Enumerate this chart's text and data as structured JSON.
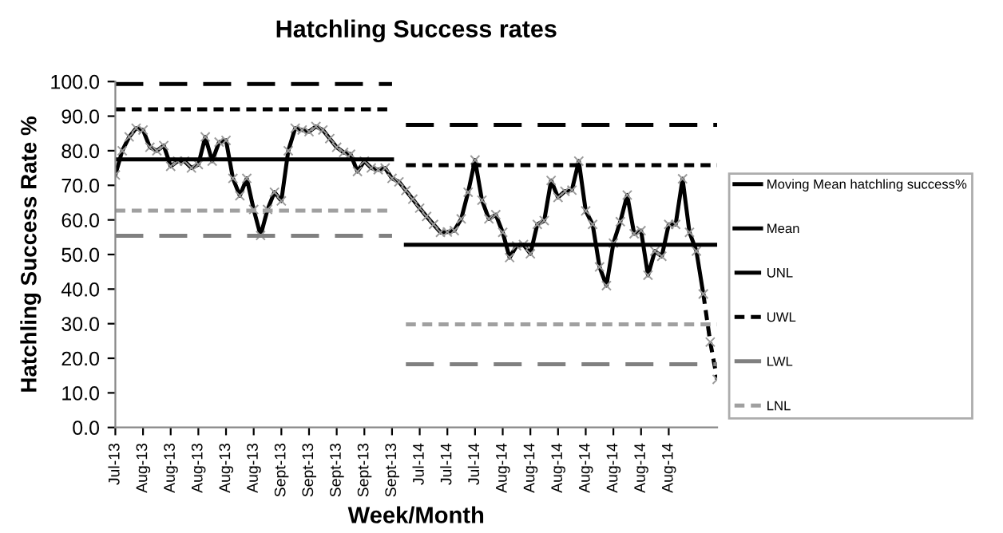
{
  "chart_data": {
    "type": "line",
    "title": "Hatchling Success rates",
    "xlabel": "Week/Month",
    "ylabel": "Hatchling Success Rate %",
    "categories": [
      "Jul-13",
      null,
      null,
      null,
      "Aug-13",
      null,
      null,
      null,
      "Aug-13",
      null,
      null,
      null,
      "Aug-13",
      null,
      null,
      null,
      "Aug-13",
      null,
      null,
      null,
      "Aug-13",
      null,
      null,
      null,
      "Sept-13",
      null,
      null,
      null,
      "Sept-13",
      null,
      null,
      null,
      "Sept-13",
      null,
      null,
      null,
      "Sept-13",
      null,
      null,
      null,
      "Sept-13",
      null,
      null,
      null,
      "Jul-14",
      null,
      null,
      null,
      "Jul-14",
      null,
      null,
      null,
      "Jul-14",
      null,
      null,
      null,
      "Aug-14",
      null,
      null,
      null,
      "Aug-14",
      null,
      null,
      null,
      "Aug-14",
      null,
      null,
      null,
      "Aug-14",
      null,
      null,
      null,
      "Aug-14",
      null,
      null,
      null,
      "Aug-14",
      null,
      null,
      null,
      "Aug-14",
      null,
      null,
      null,
      null,
      null,
      null,
      null
    ],
    "series": [
      {
        "name": "Moving Mean hatchling success%",
        "color": "#000000",
        "marker": "cross",
        "line_style": "solid",
        "values": [
          73,
          80,
          84,
          86.5,
          86,
          81,
          80,
          81.5,
          75.5,
          77,
          77,
          75,
          76,
          84,
          77,
          82.5,
          83,
          72,
          67,
          72,
          63,
          55.5,
          63,
          68,
          65.5,
          80,
          86.5,
          86,
          85.5,
          87,
          86,
          83.5,
          81,
          79.5,
          79,
          74,
          77,
          75,
          74.5,
          75,
          72,
          71,
          68.5,
          66,
          63.4,
          61,
          58.7,
          56.4,
          56.5,
          56.9,
          60.3,
          68,
          77.3,
          65.7,
          60.3,
          61.5,
          56.4,
          49.1,
          52.5,
          52.9,
          50.2,
          58.7,
          59.8,
          71.4,
          66.5,
          68.3,
          68.6,
          77,
          62.6,
          58.7,
          46.4,
          41,
          53.3,
          59.5,
          67.2,
          56,
          56.9,
          44,
          51,
          49.5,
          58.7,
          58.7,
          71.9,
          56.4,
          51,
          38.6,
          null,
          null
        ]
      },
      {
        "color": "#000000",
        "marker": "cross",
        "line_style": "dotted",
        "values": [
          null,
          null,
          null,
          null,
          null,
          null,
          null,
          null,
          null,
          null,
          null,
          null,
          null,
          null,
          null,
          null,
          null,
          null,
          null,
          null,
          null,
          null,
          null,
          null,
          null,
          null,
          null,
          null,
          null,
          null,
          null,
          null,
          null,
          null,
          null,
          null,
          null,
          null,
          null,
          null,
          null,
          null,
          null,
          null,
          null,
          null,
          null,
          null,
          null,
          null,
          null,
          null,
          null,
          null,
          null,
          null,
          null,
          null,
          null,
          null,
          null,
          null,
          null,
          null,
          null,
          null,
          null,
          null,
          null,
          null,
          null,
          null,
          null,
          null,
          null,
          null,
          null,
          null,
          null,
          null,
          null,
          null,
          null,
          null,
          null,
          38.6,
          24.7,
          13.9
        ]
      },
      {
        "name": "Mean",
        "color": "#000000",
        "line_style": "solid",
        "values": [
          77.5,
          77.5,
          77.5,
          77.5,
          77.5,
          77.5,
          77.5,
          77.5,
          77.5,
          77.5,
          77.5,
          77.5,
          77.5,
          77.5,
          77.5,
          77.5,
          77.5,
          77.5,
          77.5,
          77.5,
          77.5,
          77.5,
          77.5,
          77.5,
          77.5,
          77.5,
          77.5,
          77.5,
          77.5,
          77.5,
          77.5,
          77.5,
          77.5,
          77.5,
          77.5,
          77.5,
          77.5,
          77.5,
          77.5,
          77.5,
          77.5,
          null,
          52.8,
          52.8,
          52.8,
          52.8,
          52.8,
          52.8,
          52.8,
          52.8,
          52.8,
          52.8,
          52.8,
          52.8,
          52.8,
          52.8,
          52.8,
          52.8,
          52.8,
          52.8,
          52.8,
          52.8,
          52.8,
          52.8,
          52.8,
          52.8,
          52.8,
          52.8,
          52.8,
          52.8,
          52.8,
          52.8,
          52.8,
          52.8,
          52.8,
          52.8,
          52.8,
          52.8,
          52.8,
          52.8,
          52.8,
          52.8,
          52.8,
          52.8,
          52.8,
          52.8,
          52.8,
          52.8
        ]
      },
      {
        "name": "UNL",
        "color": "#000000",
        "line_style": "dashed",
        "values": [
          99.3,
          99.3,
          99.3,
          99.3,
          99.3,
          99.3,
          99.3,
          99.3,
          99.3,
          99.3,
          99.3,
          99.3,
          99.3,
          99.3,
          99.3,
          99.3,
          99.3,
          99.3,
          99.3,
          99.3,
          99.3,
          99.3,
          99.3,
          99.3,
          99.3,
          99.3,
          99.3,
          99.3,
          99.3,
          99.3,
          99.3,
          99.3,
          99.3,
          99.3,
          99.3,
          99.3,
          99.3,
          99.3,
          99.3,
          99.3,
          99.3,
          null,
          87.5,
          87.5,
          87.5,
          87.5,
          87.5,
          87.5,
          87.5,
          87.5,
          87.5,
          87.5,
          87.5,
          87.5,
          87.5,
          87.5,
          87.5,
          87.5,
          87.5,
          87.5,
          87.5,
          87.5,
          87.5,
          87.5,
          87.5,
          87.5,
          87.5,
          87.5,
          87.5,
          87.5,
          87.5,
          87.5,
          87.5,
          87.5,
          87.5,
          87.5,
          87.5,
          87.5,
          87.5,
          87.5,
          87.5,
          87.5,
          87.5,
          87.5,
          87.5,
          87.5,
          87.5,
          87.5
        ]
      },
      {
        "name": "UWL",
        "color": "#000000",
        "line_style": "dotted",
        "values": [
          92,
          92,
          92,
          92,
          92,
          92,
          92,
          92,
          92,
          92,
          92,
          92,
          92,
          92,
          92,
          92,
          92,
          92,
          92,
          92,
          92,
          92,
          92,
          92,
          92,
          92,
          92,
          92,
          92,
          92,
          92,
          92,
          92,
          92,
          92,
          92,
          92,
          92,
          92,
          92,
          92,
          null,
          75.8,
          75.8,
          75.8,
          75.8,
          75.8,
          75.8,
          75.8,
          75.8,
          75.8,
          75.8,
          75.8,
          75.8,
          75.8,
          75.8,
          75.8,
          75.8,
          75.8,
          75.8,
          75.8,
          75.8,
          75.8,
          75.8,
          75.8,
          75.8,
          75.8,
          75.8,
          75.8,
          75.8,
          75.8,
          75.8,
          75.8,
          75.8,
          75.8,
          75.8,
          75.8,
          75.8,
          75.8,
          75.8,
          75.8,
          75.8,
          75.8,
          75.8,
          75.8,
          75.8,
          75.8,
          75.8
        ]
      },
      {
        "name": "LWL",
        "color": "#808080",
        "line_style": "dashed",
        "values": [
          55.4,
          55.4,
          55.4,
          55.4,
          55.4,
          55.4,
          55.4,
          55.4,
          55.4,
          55.4,
          55.4,
          55.4,
          55.4,
          55.4,
          55.4,
          55.4,
          55.4,
          55.4,
          55.4,
          55.4,
          55.4,
          55.4,
          55.4,
          55.4,
          55.4,
          55.4,
          55.4,
          55.4,
          55.4,
          55.4,
          55.4,
          55.4,
          55.4,
          55.4,
          55.4,
          55.4,
          55.4,
          55.4,
          55.4,
          55.4,
          55.4,
          null,
          18.3,
          18.3,
          18.3,
          18.3,
          18.3,
          18.3,
          18.3,
          18.3,
          18.3,
          18.3,
          18.3,
          18.3,
          18.3,
          18.3,
          18.3,
          18.3,
          18.3,
          18.3,
          18.3,
          18.3,
          18.3,
          18.3,
          18.3,
          18.3,
          18.3,
          18.3,
          18.3,
          18.3,
          18.3,
          18.3,
          18.3,
          18.3,
          18.3,
          18.3,
          18.3,
          18.3,
          18.3,
          18.3,
          18.3,
          18.3,
          18.3,
          18.3,
          18.3,
          18.3,
          18.3,
          18.3
        ]
      },
      {
        "name": "LNL",
        "color": "#a0a0a0",
        "line_style": "dotted",
        "values": [
          62.7,
          62.7,
          62.7,
          62.7,
          62.7,
          62.7,
          62.7,
          62.7,
          62.7,
          62.7,
          62.7,
          62.7,
          62.7,
          62.7,
          62.7,
          62.7,
          62.7,
          62.7,
          62.7,
          62.7,
          62.7,
          62.7,
          62.7,
          62.7,
          62.7,
          62.7,
          62.7,
          62.7,
          62.7,
          62.7,
          62.7,
          62.7,
          62.7,
          62.7,
          62.7,
          62.7,
          62.7,
          62.7,
          62.7,
          62.7,
          62.7,
          null,
          29.8,
          29.8,
          29.8,
          29.8,
          29.8,
          29.8,
          29.8,
          29.8,
          29.8,
          29.8,
          29.8,
          29.8,
          29.8,
          29.8,
          29.8,
          29.8,
          29.8,
          29.8,
          29.8,
          29.8,
          29.8,
          29.8,
          29.8,
          29.8,
          29.8,
          29.8,
          29.8,
          29.8,
          29.8,
          29.8,
          29.8,
          29.8,
          29.8,
          29.8,
          29.8,
          29.8,
          29.8,
          29.8,
          29.8,
          29.8,
          29.8,
          29.8,
          29.8,
          29.8,
          29.8,
          29.8
        ]
      }
    ],
    "ylim": [
      0,
      100
    ],
    "yticks": [
      {
        "value": 0,
        "label": "0.0"
      },
      {
        "value": 10,
        "label": "10.0"
      },
      {
        "value": 20,
        "label": "20.0"
      },
      {
        "value": 30,
        "label": "30.0"
      },
      {
        "value": 40,
        "label": "40.0"
      },
      {
        "value": 50,
        "label": "50.0"
      },
      {
        "value": 60,
        "label": "60.0"
      },
      {
        "value": 70,
        "label": "70.0"
      },
      {
        "value": 80,
        "label": "80.0"
      },
      {
        "value": 90,
        "label": "90.0"
      },
      {
        "value": 100,
        "label": "100.0"
      }
    ],
    "grid": false,
    "legend": "right"
  }
}
